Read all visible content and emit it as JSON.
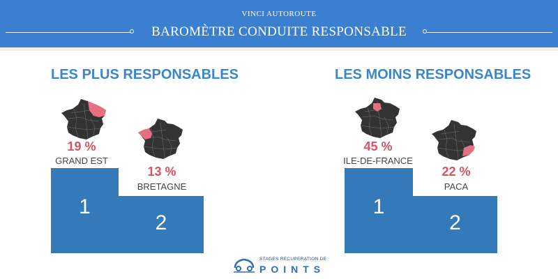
{
  "header": {
    "subtitle": "VINCI AUTOROUTE",
    "title": "BAROMÈTRE CONDUITE RESPONSABLE"
  },
  "left_section": {
    "title": "LES PLUS RESPONSABLES",
    "first": {
      "percent": "19 %",
      "region": "GRAND EST",
      "rank": "1"
    },
    "second": {
      "percent": "13 %",
      "region": "BRETAGNE",
      "rank": "2"
    }
  },
  "right_section": {
    "title": "LES MOINS RESPONSABLES",
    "first": {
      "percent": "45 %",
      "region": "ILE-DE-FRANCE",
      "rank": "1"
    },
    "second": {
      "percent": "22 %",
      "region": "PACA",
      "rank": "2"
    }
  },
  "logo": {
    "line1": "STAGES RECUPERATION DE",
    "line2": "POINTS"
  },
  "colors": {
    "header_blue": "#3b7fd0",
    "title_blue": "#3a86cc",
    "podium_blue": "#3479b8",
    "highlight_red": "#d9545e",
    "map_dark": "#333333"
  }
}
